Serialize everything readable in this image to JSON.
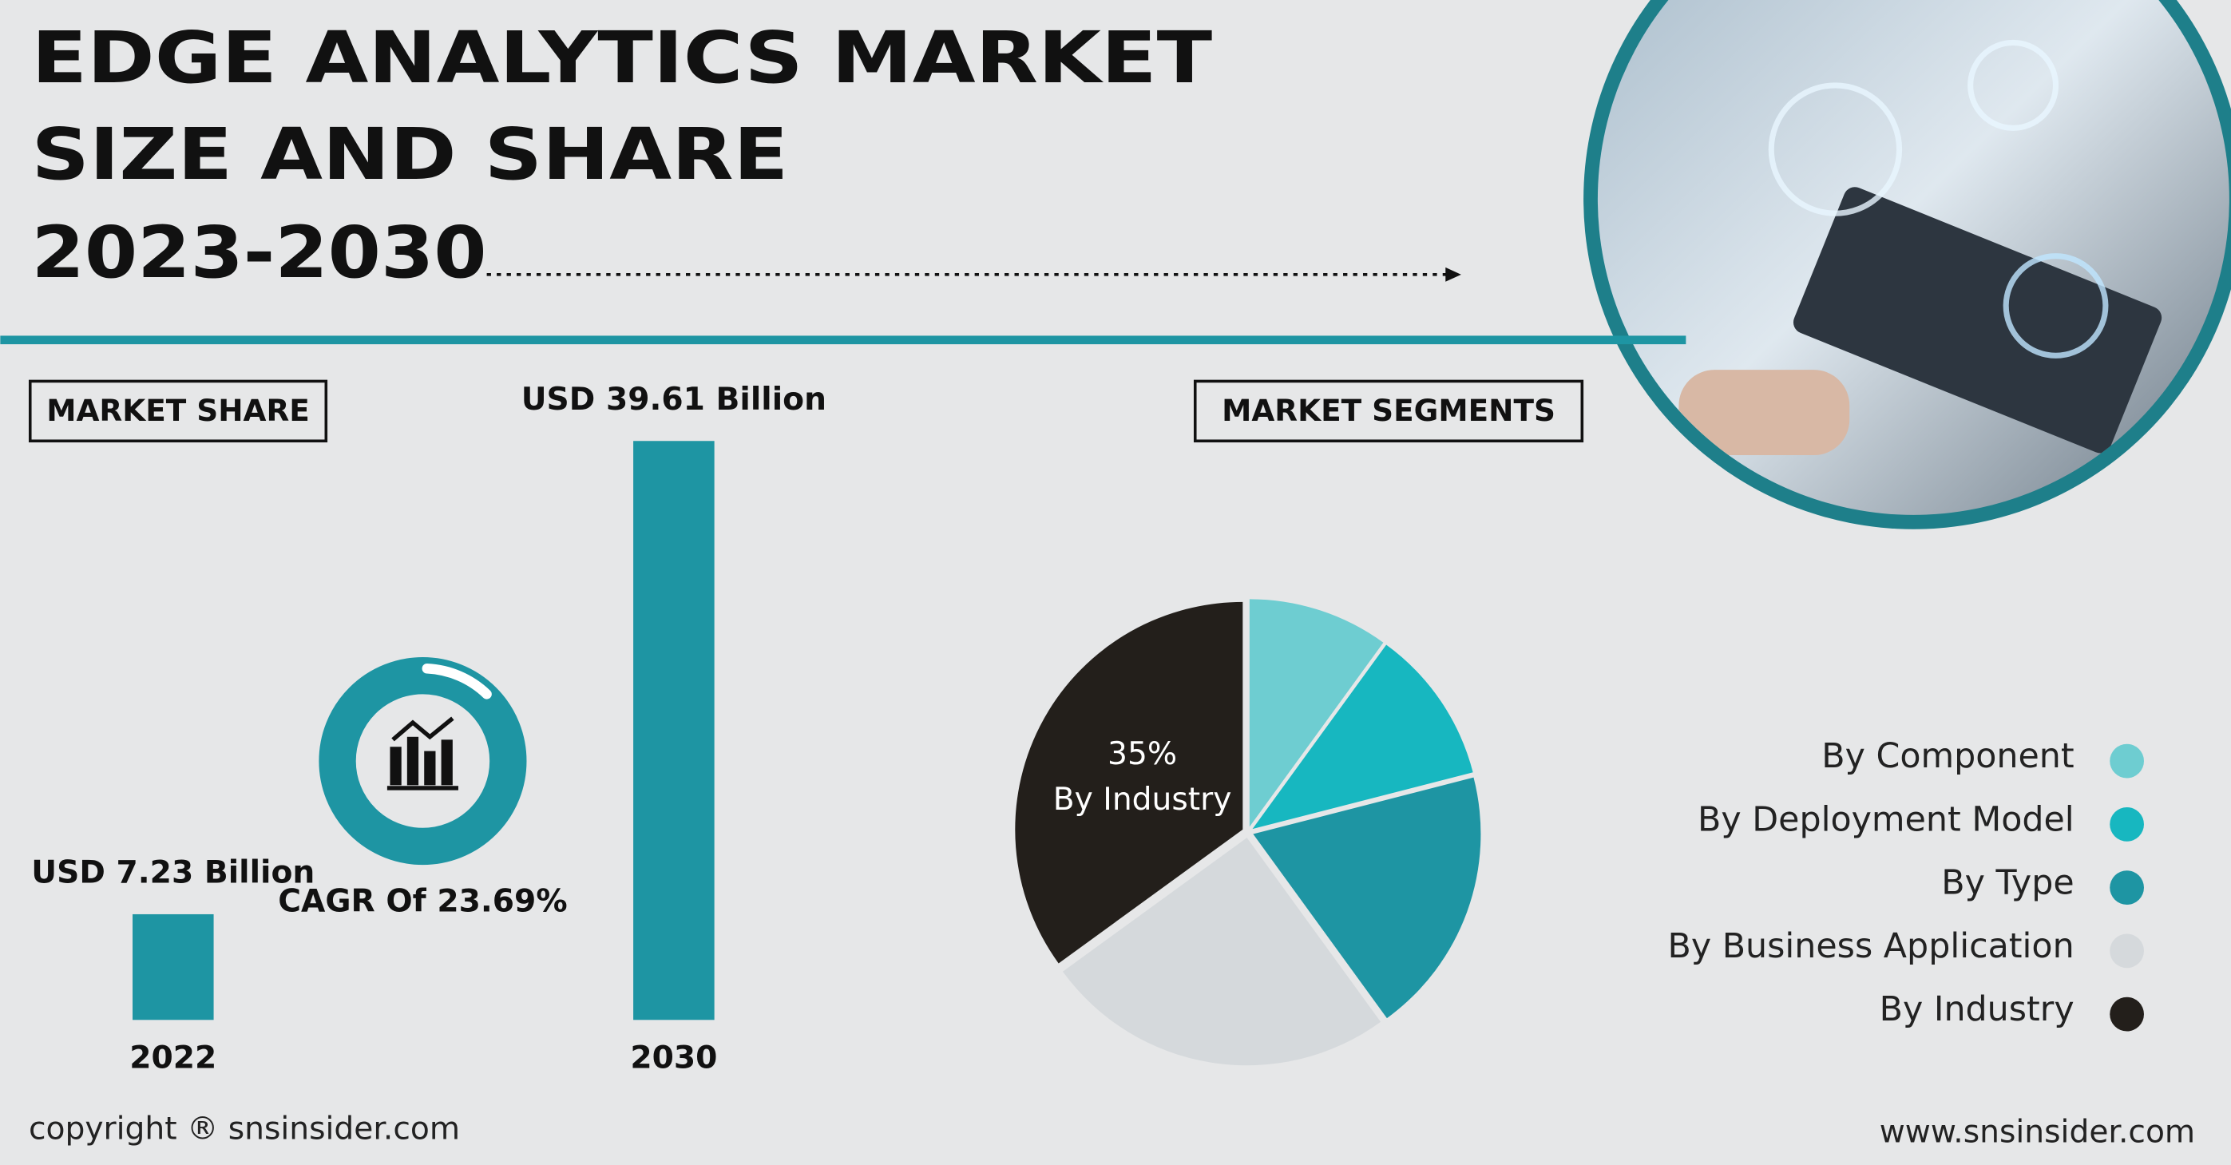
{
  "title": [
    "EDGE ANALYTICS MARKET",
    "SIZE AND SHARE",
    "2023-2030"
  ],
  "market_share_heading": "MARKET SHARE",
  "market_segments_heading": "MARKET SEGMENTS",
  "cagr": "CAGR Of 23.69%",
  "copyright": "copyright ® snsinsider.com",
  "website": "www.snsinsider.com",
  "chart_data": [
    {
      "type": "bar",
      "categories": [
        "2022",
        "2030"
      ],
      "values": [
        7.23,
        39.61
      ],
      "value_labels": [
        "USD 7.23 Billion",
        "USD 39.61 Billion"
      ],
      "color": "#1e95a3"
    },
    {
      "type": "pie",
      "categories": [
        "By Component",
        "By Deployment Model",
        "By Type",
        "By Business Application",
        "By Industry"
      ],
      "values": [
        10,
        11,
        19,
        25,
        35
      ],
      "value_labels": [
        null,
        null,
        null,
        null,
        "35%"
      ],
      "colors": [
        "#6ecdd1",
        "#17b7c0",
        "#1e95a3",
        "#d5d9dc",
        "#231f1b"
      ]
    }
  ]
}
